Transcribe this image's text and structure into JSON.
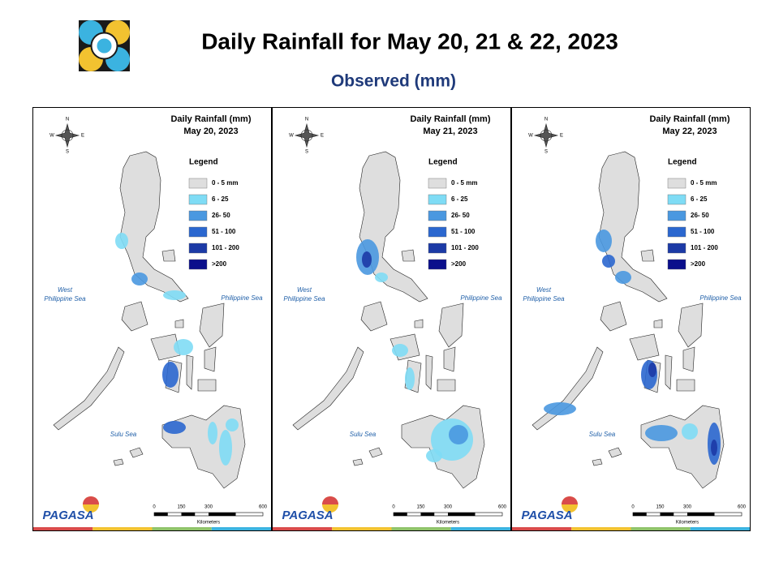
{
  "header": {
    "title": "Daily Rainfall for May 20, 21 & 22, 2023",
    "subtitle": "Observed (mm)"
  },
  "panels": [
    {
      "title": "Daily Rainfall (mm)",
      "date": "May 20, 2023",
      "legend_title": "Legend",
      "legend": [
        {
          "label": "0 - 5 mm",
          "color": "#dedede"
        },
        {
          "label": "6 - 25",
          "color": "#7fdcf5"
        },
        {
          "label": "26- 50",
          "color": "#4a98e0"
        },
        {
          "label": "51 - 100",
          "color": "#2b67cf"
        },
        {
          "label": "101 - 200",
          "color": "#1c3aa6"
        },
        {
          "label": ">200",
          "color": "#0b0f8c"
        }
      ],
      "west_sea": [
        "West",
        "Philippine Sea"
      ],
      "east_sea": "Philippine Sea",
      "south_sea": "Sulu Sea",
      "compass": [
        "N",
        "W",
        "E",
        "S"
      ],
      "scale_ticks": [
        0,
        150,
        300,
        600
      ],
      "scale_unit": "Kilometers",
      "logo": "PAGASA"
    },
    {
      "title": "Daily Rainfall (mm)",
      "date": "May 21, 2023",
      "legend_title": "Legend",
      "legend": [
        {
          "label": "0 - 5 mm",
          "color": "#dedede"
        },
        {
          "label": "6 - 25",
          "color": "#7fdcf5"
        },
        {
          "label": "26- 50",
          "color": "#4a98e0"
        },
        {
          "label": "51 - 100",
          "color": "#2b67cf"
        },
        {
          "label": "101 - 200",
          "color": "#1c3aa6"
        },
        {
          "label": ">200",
          "color": "#0b0f8c"
        }
      ],
      "west_sea": [
        "West",
        "Philippine Sea"
      ],
      "east_sea": "Philippine Sea",
      "south_sea": "Sulu Sea",
      "compass": [
        "N",
        "W",
        "E",
        "S"
      ],
      "scale_ticks": [
        0,
        150,
        300,
        600
      ],
      "scale_unit": "Kilometers",
      "logo": "PAGASA"
    },
    {
      "title": "Daily Rainfall (mm)",
      "date": "May 22, 2023",
      "legend_title": "Legend",
      "legend": [
        {
          "label": "0 - 5 mm",
          "color": "#dedede"
        },
        {
          "label": "6 - 25",
          "color": "#7fdcf5"
        },
        {
          "label": "26- 50",
          "color": "#4a98e0"
        },
        {
          "label": "51 - 100",
          "color": "#2b67cf"
        },
        {
          "label": "101 - 200",
          "color": "#1c3aa6"
        },
        {
          "label": ">200",
          "color": "#0b0f8c"
        }
      ],
      "west_sea": [
        "West",
        "Philippine Sea"
      ],
      "east_sea": "Philippine Sea",
      "south_sea": "Sulu Sea",
      "compass": [
        "N",
        "W",
        "E",
        "S"
      ],
      "scale_ticks": [
        0,
        150,
        300,
        600
      ],
      "scale_unit": "Kilometers",
      "logo": "PAGASA"
    }
  ]
}
